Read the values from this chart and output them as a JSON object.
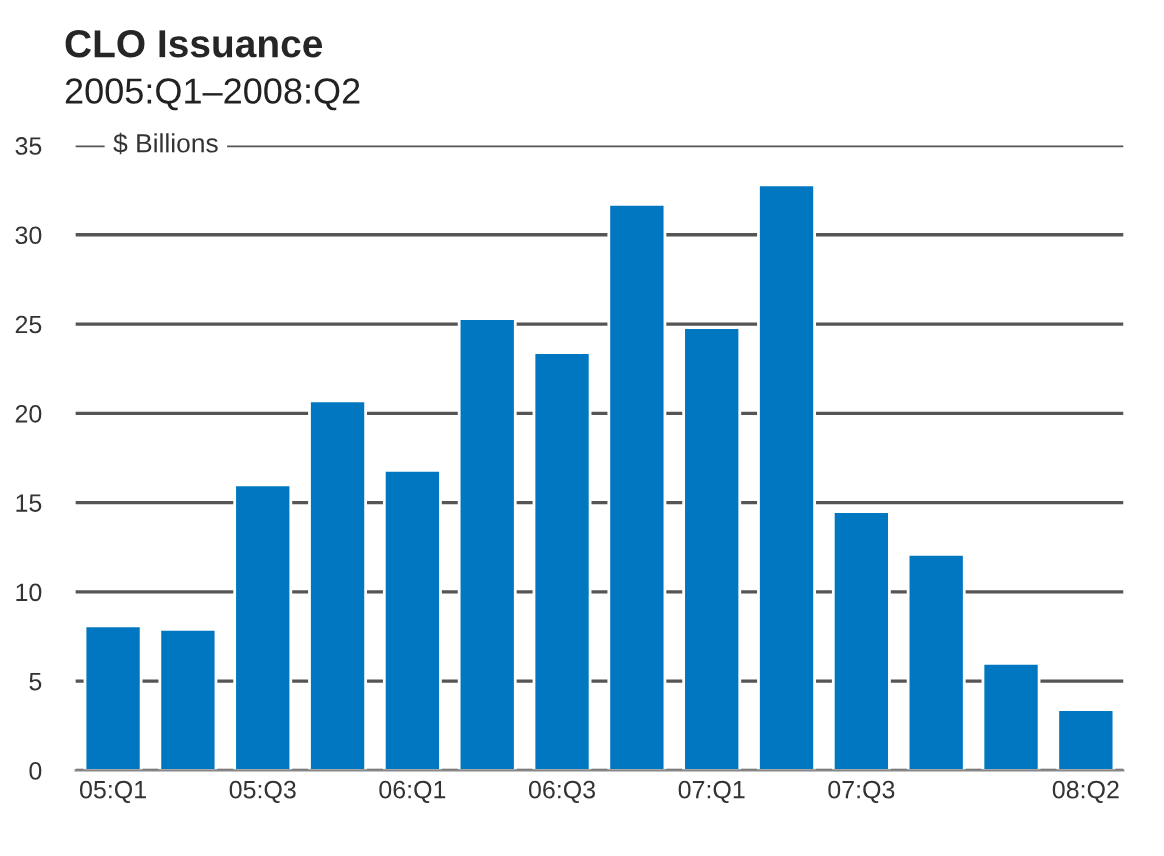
{
  "chart_data": {
    "type": "bar",
    "title": "CLO Issuance",
    "subtitle": "2005:Q1–2008:Q2",
    "ylabel": "$ Billions",
    "categories": [
      "05:Q1",
      null,
      "05:Q3",
      null,
      "06:Q1",
      null,
      "06:Q3",
      null,
      "07:Q1",
      null,
      "07:Q3",
      null,
      null,
      "08:Q2"
    ],
    "values": [
      8.1,
      7.9,
      16.0,
      20.7,
      16.8,
      25.3,
      23.4,
      31.7,
      24.8,
      32.8,
      14.5,
      12.1,
      6.0,
      3.4
    ],
    "color": "#0077c0",
    "ylim": [
      0,
      35
    ],
    "yticks": [
      0,
      5,
      10,
      15,
      20,
      25,
      30,
      35
    ],
    "grid": "y"
  }
}
